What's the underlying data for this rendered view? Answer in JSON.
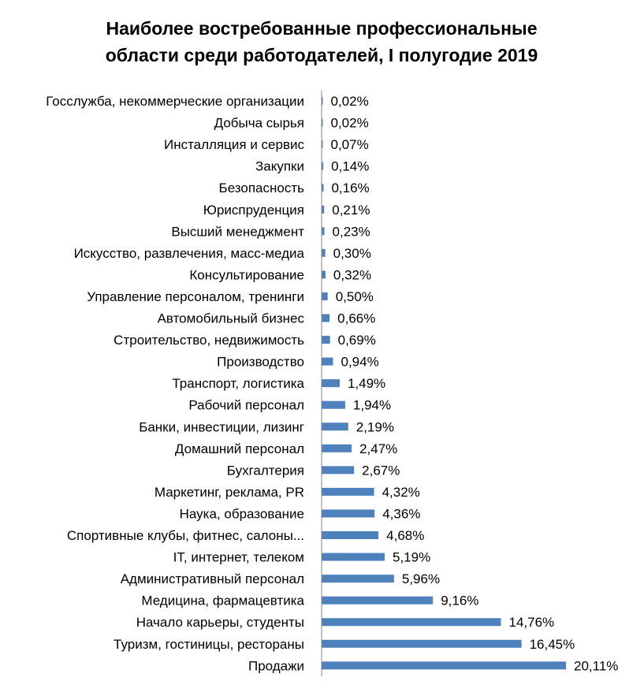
{
  "chart_data": {
    "type": "bar",
    "orientation": "horizontal",
    "title_lines": [
      "Наиболее востребованные профессиональные",
      "области среди работодателей, I полугодие 2019"
    ],
    "bar_color": "#4f81bd",
    "categories": [
      "Госслужба, некоммерческие организации",
      "Добыча сырья",
      "Инсталляция и сервис",
      "Закупки",
      "Безопасность",
      "Юриспруденция",
      "Высший менеджмент",
      "Искусство, развлечения, масс-медиа",
      "Консультирование",
      "Управление персоналом, тренинги",
      "Автомобильный бизнес",
      "Строительство, недвижимость",
      "Производство",
      "Транспорт, логистика",
      "Рабочий персонал",
      "Банки, инвестиции, лизинг",
      "Домашний персонал",
      "Бухгалтерия",
      "Маркетинг, реклама, PR",
      "Наука, образование",
      "Спортивные клубы, фитнес, салоны...",
      "IT, интернет, телеком",
      "Административный персонал",
      "Медицина, фармацевтика",
      "Начало карьеры, студенты",
      "Туризм, гостиницы, рестораны",
      "Продажи"
    ],
    "values": [
      0.02,
      0.02,
      0.07,
      0.14,
      0.16,
      0.21,
      0.23,
      0.3,
      0.32,
      0.5,
      0.66,
      0.69,
      0.94,
      1.49,
      1.94,
      2.19,
      2.47,
      2.67,
      4.32,
      4.36,
      4.68,
      5.19,
      5.96,
      9.16,
      14.76,
      16.45,
      20.11
    ],
    "value_labels": [
      "0,02%",
      "0,02%",
      "0,07%",
      "0,14%",
      "0,16%",
      "0,21%",
      "0,23%",
      "0,30%",
      "0,32%",
      "0,50%",
      "0,66%",
      "0,69%",
      "0,94%",
      "1,49%",
      "1,94%",
      "2,19%",
      "2,47%",
      "2,67%",
      "4,32%",
      "4,36%",
      "4,68%",
      "5,19%",
      "5,96%",
      "9,16%",
      "14,76%",
      "16,45%",
      "20,11%"
    ],
    "x_unit": "%",
    "xlim": [
      0,
      20.11
    ],
    "grid": false,
    "legend": "none"
  }
}
